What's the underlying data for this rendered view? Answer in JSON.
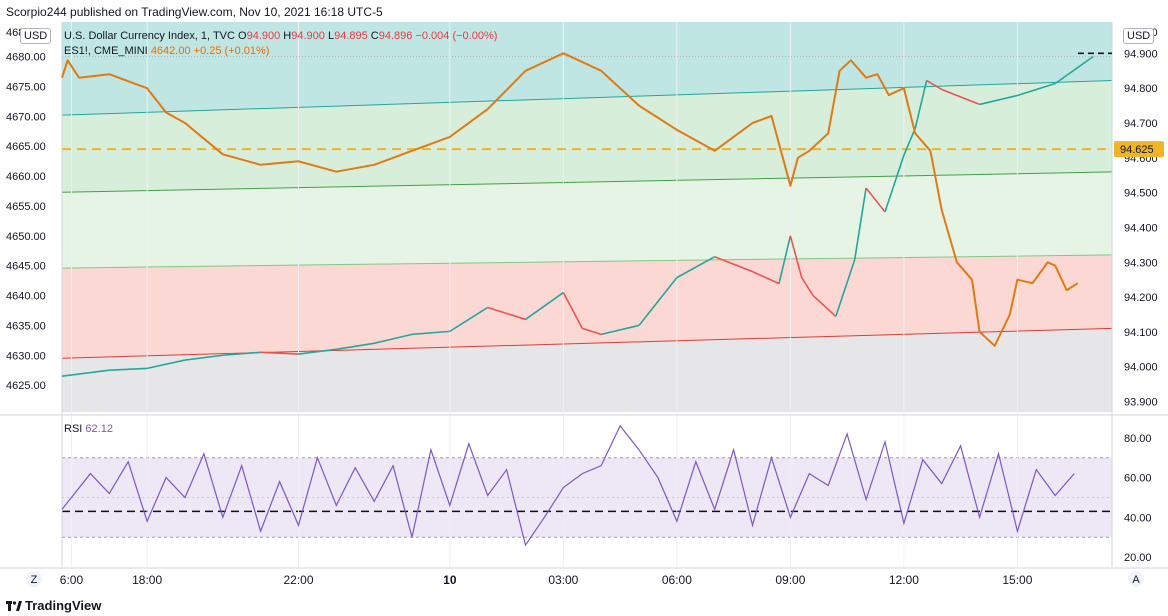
{
  "header": {
    "published": "Scorpio244 published on TradingView.com, Nov 10, 2021 16:18 UTC-5"
  },
  "legend": {
    "dxy_name": "U.S. Dollar Currency Index, 1, TVC",
    "dxy_ohlc": [
      {
        "k": "O",
        "v": "94.900"
      },
      {
        "k": "H",
        "v": "94.900"
      },
      {
        "k": "L",
        "v": "94.895"
      },
      {
        "k": "C",
        "v": "94.896"
      }
    ],
    "dxy_change": "−0.004 (−0.00%)",
    "es_name": "ES1!, CME_MINI",
    "es_value": "4642.00",
    "es_change": "+0.25 (+0.01%)",
    "rsi_label": "RSI",
    "rsi_value": "62.12"
  },
  "currency_left": "USD",
  "currency_right": "USD",
  "footer": {
    "brand": "TradingView",
    "left_button": "Z",
    "right_button": "A"
  },
  "colors": {
    "es_up": "#26a69a",
    "es_down": "#ef5350",
    "dxy": "#e07a14",
    "rsi": "#7e57c2",
    "dashed_level": "#f0b429",
    "price_tag": "#f0b429"
  },
  "chart_data": {
    "type": "line",
    "x_ticks": [
      "6:00",
      "18:00",
      "22:00",
      "10",
      "03:00",
      "06:00",
      "09:00",
      "12:00",
      "15:00"
    ],
    "x_tick_hours": [
      -2.0,
      0.0,
      4.0,
      8.0,
      11.0,
      14.0,
      17.0,
      20.0,
      23.0
    ],
    "x_range_hours": [
      -2.25,
      25.5
    ],
    "left_axis": {
      "label": "ES1!",
      "ticks": [
        4625,
        4630,
        4635,
        4640,
        4645,
        4650,
        4655,
        4660,
        4665,
        4670,
        4675,
        4680
      ],
      "top_partial": "4685.00",
      "range": [
        4620.5,
        4685.8
      ]
    },
    "right_axis": {
      "label": "DXY",
      "ticks": [
        93.9,
        94.0,
        94.1,
        94.2,
        94.3,
        94.4,
        94.5,
        94.6,
        94.7,
        94.8,
        94.9
      ],
      "top_partial": "95.000",
      "range": [
        93.87,
        94.99
      ]
    },
    "dxy_price_tag": "94.625",
    "dxy_dashed_level": 94.625,
    "last_price_line": 94.9,
    "channel_lines_es": [
      {
        "name": "upper",
        "start": 4680.0,
        "end": 4680.0
      },
      {
        "name": "top",
        "start": 4670.2,
        "end": 4676.0
      },
      {
        "name": "mid",
        "start": 4657.3,
        "end": 4660.7
      },
      {
        "name": "low",
        "start": 4644.6,
        "end": 4646.8
      },
      {
        "name": "bottom",
        "start": 4629.5,
        "end": 4634.5
      }
    ],
    "series": [
      {
        "name": "ES1!",
        "axis": "left",
        "x": [
          -2.25,
          -1.0,
          0.0,
          1.0,
          2.0,
          3.0,
          4.0,
          5.0,
          6.0,
          7.0,
          8.0,
          9.0,
          10.0,
          11.0,
          11.5,
          12.0,
          13.0,
          14.0,
          15.0,
          16.0,
          16.7,
          17.0,
          17.3,
          17.6,
          18.2,
          18.7,
          19.0,
          19.5,
          20.0,
          20.3,
          20.6,
          21.0,
          22.0,
          23.0,
          24.0,
          25.0
        ],
        "values": [
          4626.5,
          4627.5,
          4627.8,
          4629.2,
          4630.0,
          4630.5,
          4630.2,
          4631.0,
          4632.0,
          4633.5,
          4634.0,
          4638.0,
          4636.0,
          4640.5,
          4634.5,
          4633.5,
          4635.0,
          4643.0,
          4646.5,
          4644.0,
          4642.0,
          4650.0,
          4643.0,
          4640.0,
          4636.5,
          4646.0,
          4658.0,
          4654.0,
          4663.5,
          4668.0,
          4676.0,
          4674.5,
          4672.0,
          4673.5,
          4675.5,
          4680.0
        ]
      },
      {
        "name": "DXY",
        "axis": "right",
        "x": [
          -2.25,
          -2.1,
          -1.8,
          -1.0,
          0.0,
          0.5,
          1.0,
          2.0,
          3.0,
          4.0,
          5.0,
          6.0,
          7.0,
          8.0,
          9.0,
          10.0,
          11.0,
          12.0,
          13.0,
          14.0,
          15.0,
          16.0,
          16.5,
          16.8,
          17.0,
          17.2,
          17.5,
          18.0,
          18.3,
          18.6,
          19.0,
          19.3,
          19.6,
          20.0,
          20.3,
          20.7,
          21.0,
          21.4,
          21.8,
          22.0,
          22.4,
          22.8,
          23.0,
          23.4,
          23.8,
          24.0,
          24.3,
          24.6
        ],
        "values": [
          94.83,
          94.88,
          94.83,
          94.84,
          94.8,
          94.73,
          94.7,
          94.61,
          94.58,
          94.59,
          94.56,
          94.58,
          94.62,
          94.66,
          94.74,
          94.85,
          94.9,
          94.85,
          94.75,
          94.68,
          94.62,
          94.7,
          94.72,
          94.6,
          94.52,
          94.6,
          94.62,
          94.67,
          94.85,
          94.88,
          94.83,
          94.84,
          94.78,
          94.8,
          94.67,
          94.62,
          94.45,
          94.3,
          94.25,
          94.1,
          94.06,
          94.15,
          94.25,
          94.24,
          94.3,
          94.29,
          94.22,
          94.24
        ]
      },
      {
        "name": "RSI",
        "axis": "rsi",
        "x": [
          -2.25,
          -1.5,
          -1.0,
          -0.5,
          0.0,
          0.5,
          1.0,
          1.5,
          2.0,
          2.5,
          3.0,
          3.5,
          4.0,
          4.5,
          5.0,
          5.5,
          6.0,
          6.5,
          7.0,
          7.5,
          8.0,
          8.5,
          9.0,
          9.5,
          10.0,
          10.5,
          11.0,
          11.5,
          12.0,
          12.5,
          13.0,
          13.5,
          14.0,
          14.5,
          15.0,
          15.5,
          16.0,
          16.5,
          17.0,
          17.5,
          18.0,
          18.5,
          19.0,
          19.5,
          20.0,
          20.5,
          21.0,
          21.5,
          22.0,
          22.5,
          23.0,
          23.5,
          24.0,
          24.5
        ],
        "values": [
          44,
          62,
          52,
          68,
          38,
          60,
          50,
          72,
          40,
          66,
          33,
          58,
          36,
          70,
          46,
          65,
          48,
          66,
          30,
          74,
          46,
          77,
          51,
          64,
          26,
          40,
          55,
          62,
          66,
          86,
          74,
          60,
          38,
          68,
          44,
          74,
          36,
          70,
          40,
          62,
          56,
          82,
          49,
          78,
          37,
          69,
          57,
          76,
          40,
          72,
          33,
          64,
          51,
          62
        ]
      }
    ],
    "rsi_axis": {
      "ticks": [
        20,
        40,
        60,
        80
      ],
      "range": [
        15,
        90
      ],
      "bands": [
        30,
        70
      ],
      "mid": 43
    }
  }
}
